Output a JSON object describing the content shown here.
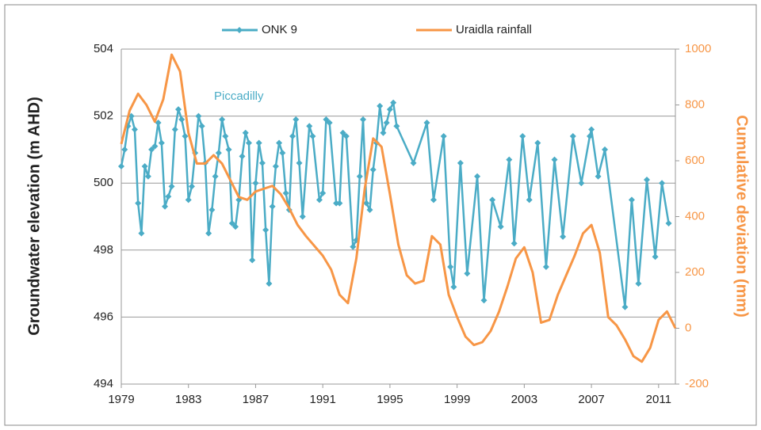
{
  "chart_data": {
    "type": "line",
    "annotation": "Piccadilly",
    "y_label": "Groundwater elevation (m AHD)",
    "y2_label": "Cumulative deviation (mm)",
    "xlim": [
      1979,
      2012
    ],
    "xticks": [
      1979,
      1983,
      1987,
      1991,
      1995,
      1999,
      2003,
      2007,
      2011
    ],
    "ylim": [
      494,
      504
    ],
    "yticks": [
      494,
      496,
      498,
      500,
      502,
      504
    ],
    "y2lim": [
      -200,
      1000
    ],
    "y2ticks": [
      -200,
      0,
      200,
      400,
      600,
      800,
      1000
    ],
    "grid": true,
    "legend": "top",
    "series": [
      {
        "name": "ONK 9",
        "color": "#4bacc6",
        "axis": "y",
        "x": [
          1979.0,
          1979.2,
          1979.4,
          1979.6,
          1979.8,
          1980.0,
          1980.2,
          1980.4,
          1980.6,
          1980.8,
          1981.0,
          1981.2,
          1981.4,
          1981.6,
          1981.8,
          1982.0,
          1982.2,
          1982.4,
          1982.6,
          1982.8,
          1983.0,
          1983.2,
          1983.4,
          1983.6,
          1983.8,
          1984.0,
          1984.2,
          1984.4,
          1984.6,
          1984.8,
          1985.0,
          1985.2,
          1985.4,
          1985.6,
          1985.8,
          1986.0,
          1986.2,
          1986.4,
          1986.6,
          1986.8,
          1987.0,
          1987.2,
          1987.4,
          1987.6,
          1987.8,
          1988.0,
          1988.2,
          1988.4,
          1988.6,
          1988.8,
          1989.0,
          1989.2,
          1989.4,
          1989.6,
          1989.8,
          1990.2,
          1990.4,
          1990.8,
          1991.0,
          1991.2,
          1991.4,
          1991.8,
          1992.0,
          1992.2,
          1992.4,
          1992.8,
          1993.0,
          1993.2,
          1993.4,
          1993.6,
          1993.8,
          1994.0,
          1994.2,
          1994.4,
          1994.6,
          1994.8,
          1995.0,
          1995.2,
          1995.4,
          1996.4,
          1997.2,
          1997.6,
          1998.2,
          1998.6,
          1998.8,
          1999.2,
          1999.6,
          2000.2,
          2000.6,
          2001.1,
          2001.6,
          2002.1,
          2002.4,
          2002.9,
          2003.3,
          2003.8,
          2004.3,
          2004.8,
          2005.3,
          2005.9,
          2006.4,
          2006.9,
          2007.0,
          2007.4,
          2007.8,
          2009.0,
          2009.4,
          2009.8,
          2010.3,
          2010.8,
          2011.2,
          2011.6
        ],
        "values": [
          500.5,
          501.0,
          501.7,
          502.0,
          501.6,
          499.4,
          498.5,
          500.5,
          500.2,
          501.0,
          501.1,
          501.8,
          501.2,
          499.3,
          499.6,
          499.9,
          501.6,
          502.2,
          501.9,
          501.4,
          499.5,
          499.9,
          500.9,
          502.0,
          501.7,
          500.6,
          498.5,
          499.2,
          500.2,
          500.9,
          501.9,
          501.4,
          501.0,
          498.8,
          498.7,
          499.5,
          500.8,
          501.5,
          501.2,
          497.7,
          500.0,
          501.2,
          500.6,
          498.6,
          497.0,
          499.3,
          500.5,
          501.2,
          500.9,
          499.7,
          499.2,
          501.4,
          501.9,
          500.6,
          499.0,
          501.7,
          501.4,
          499.5,
          499.7,
          501.9,
          501.8,
          499.4,
          499.4,
          501.5,
          501.4,
          498.1,
          498.3,
          500.2,
          501.9,
          499.4,
          499.2,
          500.4,
          501.2,
          502.3,
          501.5,
          501.8,
          502.2,
          502.4,
          501.7,
          500.6,
          501.8,
          499.5,
          501.4,
          497.5,
          496.9,
          500.6,
          497.3,
          500.2,
          496.5,
          499.5,
          498.7,
          500.7,
          498.2,
          501.4,
          499.5,
          501.2,
          497.5,
          500.7,
          498.4,
          501.4,
          500.0,
          501.4,
          501.6,
          500.2,
          501.0,
          496.3,
          499.5,
          497.0,
          500.1,
          497.8,
          500.0,
          498.8
        ]
      },
      {
        "name": "Uraidla rainfall",
        "color": "#f79646",
        "axis": "y2",
        "x": [
          1979.0,
          1979.5,
          1980.0,
          1980.5,
          1981.0,
          1981.5,
          1982.0,
          1982.5,
          1983.0,
          1983.5,
          1984.0,
          1984.5,
          1985.0,
          1985.5,
          1986.0,
          1986.5,
          1987.0,
          1987.5,
          1988.0,
          1988.5,
          1989.0,
          1989.5,
          1990.0,
          1991.0,
          1991.5,
          1992.0,
          1992.5,
          1993.0,
          1993.5,
          1994.0,
          1994.5,
          1995.0,
          1995.5,
          1996.0,
          1996.5,
          1997.0,
          1997.5,
          1998.0,
          1998.5,
          1999.0,
          1999.5,
          2000.0,
          2000.5,
          2001.0,
          2001.5,
          2002.0,
          2002.5,
          2003.0,
          2003.5,
          2004.0,
          2004.5,
          2005.0,
          2005.5,
          2006.0,
          2006.5,
          2007.0,
          2007.5,
          2008.0,
          2008.5,
          2009.0,
          2009.5,
          2010.0,
          2010.5,
          2011.0,
          2011.5,
          2012.0
        ],
        "values": [
          660,
          780,
          840,
          800,
          740,
          820,
          980,
          920,
          700,
          590,
          590,
          620,
          590,
          530,
          470,
          460,
          490,
          500,
          510,
          480,
          430,
          370,
          330,
          260,
          210,
          120,
          90,
          250,
          500,
          680,
          650,
          480,
          300,
          190,
          160,
          170,
          330,
          300,
          120,
          40,
          -30,
          -60,
          -50,
          -10,
          60,
          150,
          250,
          290,
          200,
          20,
          30,
          120,
          190,
          260,
          340,
          370,
          270,
          40,
          10,
          -40,
          -100,
          -120,
          -70,
          30,
          60,
          0
        ]
      }
    ]
  }
}
